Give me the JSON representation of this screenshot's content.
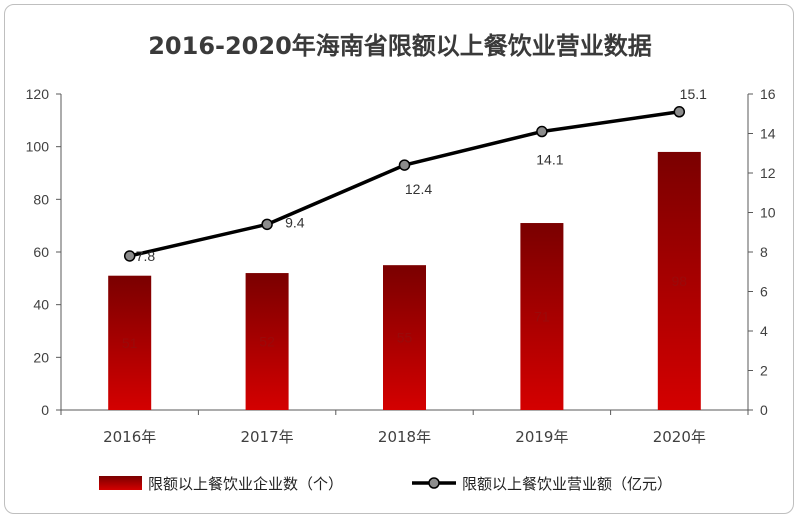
{
  "title": "2016-2020年海南省限额以上餐饮业营业数据",
  "chart_data": {
    "type": "bar",
    "categories": [
      "2016年",
      "2017年",
      "2018年",
      "2019年",
      "2020年"
    ],
    "series": [
      {
        "name": "限额以上餐饮业企业数（个）",
        "type": "bar",
        "axis": "left",
        "values": [
          51,
          52,
          55,
          71,
          98
        ]
      },
      {
        "name": "限额以上餐饮业营业额（亿元）",
        "type": "line",
        "axis": "right",
        "values": [
          7.8,
          9.4,
          12.4,
          14.1,
          15.1
        ]
      }
    ],
    "left_ylim": [
      0,
      120
    ],
    "left_ticks": [
      0,
      20,
      40,
      60,
      80,
      100,
      120
    ],
    "right_ylim": [
      0,
      16
    ],
    "right_ticks": [
      0,
      2,
      4,
      6,
      8,
      10,
      12,
      14,
      16
    ],
    "legend_position": "bottom",
    "grid": false,
    "colors": {
      "bar_top": "#7a0000",
      "bar_bottom": "#d40000",
      "line": "#000000",
      "marker": "#8c8c8c"
    }
  }
}
